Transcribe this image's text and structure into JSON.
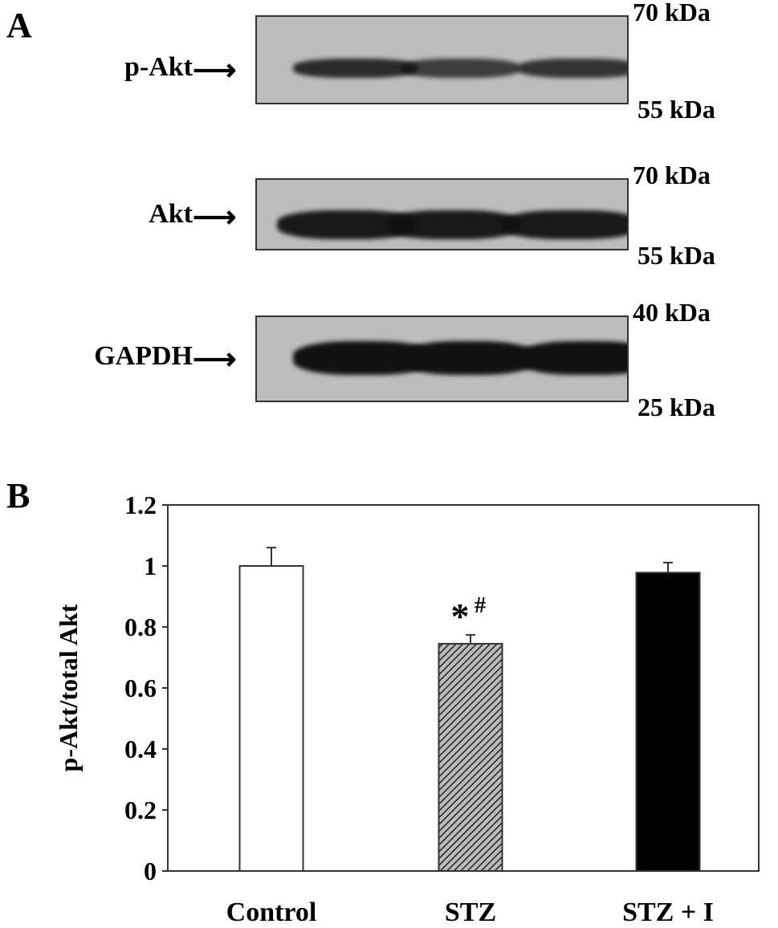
{
  "panel_a": {
    "label": "A",
    "blots": [
      {
        "protein": "p-Akt",
        "mw_top": "70 kDa",
        "mw_bottom": "55 kDa",
        "band_intensity": [
          0.85,
          0.75,
          0.8
        ]
      },
      {
        "protein": "Akt",
        "mw_top": "70 kDa",
        "mw_bottom": "55 kDa",
        "band_intensity": [
          0.95,
          0.95,
          0.95
        ]
      },
      {
        "protein": "GAPDH",
        "mw_top": "40 kDa",
        "mw_bottom": "25 kDa",
        "band_intensity": [
          1,
          1,
          1
        ]
      }
    ],
    "arrow_icon": "right-arrow"
  },
  "panel_b": {
    "label": "B"
  },
  "chart_data": {
    "type": "bar",
    "categories": [
      "Control",
      "STZ",
      "STZ + I"
    ],
    "values": [
      1.0,
      0.745,
      0.978
    ],
    "error_upper": [
      1.06,
      0.774,
      1.011
    ],
    "ylabel": "p-Akt/total Akt",
    "xlabel": "",
    "ylim": [
      0,
      1.2
    ],
    "yticks": [
      "0",
      "0.2",
      "0.4",
      "0.6",
      "0.8",
      "1",
      "1.2"
    ],
    "bar_fills": [
      "white",
      "hatched",
      "black"
    ],
    "annotations": [
      {
        "category": "STZ",
        "text": "*",
        "superscript": "#"
      }
    ],
    "grid": false
  }
}
